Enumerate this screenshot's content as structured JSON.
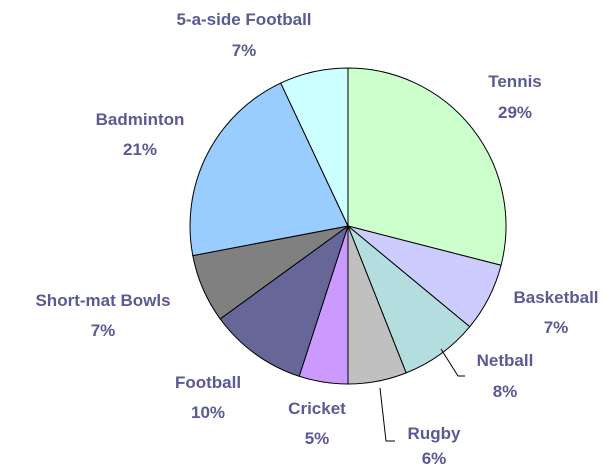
{
  "chart_data": {
    "type": "pie",
    "title": "",
    "start_angle_deg": 90,
    "direction": "clockwise",
    "slices": [
      {
        "label": "Tennis",
        "pct_text": "29%",
        "value": 29,
        "color": "#ccffcc"
      },
      {
        "label": "Basketball",
        "pct_text": "7%",
        "value": 7,
        "color": "#ccccff"
      },
      {
        "label": "Netball",
        "pct_text": "8%",
        "value": 8,
        "color": "#b4dde0"
      },
      {
        "label": "Rugby",
        "pct_text": "6%",
        "value": 6,
        "color": "#c0c0c0"
      },
      {
        "label": "Cricket",
        "pct_text": "5%",
        "value": 5,
        "color": "#cc99ff"
      },
      {
        "label": "Football",
        "pct_text": "10%",
        "value": 10,
        "color": "#666699"
      },
      {
        "label": "Short-mat Bowls",
        "pct_text": "7%",
        "value": 7,
        "color": "#808080"
      },
      {
        "label": "Badminton",
        "pct_text": "21%",
        "value": 21,
        "color": "#99ccff"
      },
      {
        "label": "5-a-side Football",
        "pct_text": "7%",
        "value": 7,
        "color": "#ccffff"
      }
    ]
  }
}
